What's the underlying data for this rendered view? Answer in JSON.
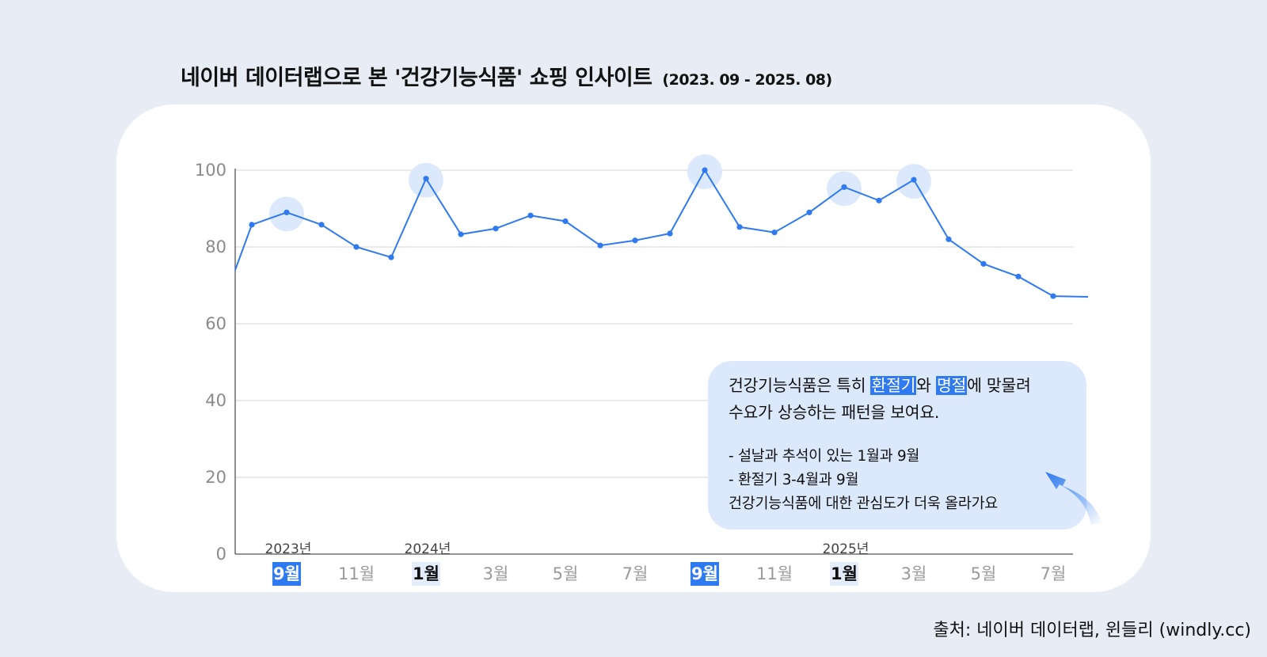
{
  "title": {
    "main": "네이버 데이터랩으로 본 '건강기능식품' 쇼핑 인사이트",
    "range": "(2023. 09 - 2025. 08)"
  },
  "chart_data": {
    "type": "line",
    "ylim": [
      0,
      100
    ],
    "yticks": [
      "0",
      "20",
      "40",
      "60",
      "80",
      "100"
    ],
    "grid": true,
    "x": [
      "2023-08",
      "2023-09",
      "2023-10",
      "2023-11",
      "2023-12",
      "2024-01",
      "2024-02",
      "2024-03",
      "2024-04",
      "2024-05",
      "2024-06",
      "2024-07",
      "2024-08",
      "2024-09",
      "2024-10",
      "2024-11",
      "2024-12",
      "2025-01",
      "2025-02",
      "2025-03",
      "2025-04",
      "2025-05",
      "2025-06",
      "2025-07",
      "2025-08"
    ],
    "values": [
      85.8,
      89.0,
      85.8,
      80.0,
      77.3,
      97.8,
      83.3,
      84.8,
      88.2,
      86.7,
      80.4,
      81.7,
      83.5,
      100,
      85.2,
      83.8,
      89.0,
      95.6,
      92.1,
      97.5,
      82.0,
      75.6,
      72.3,
      67.2,
      67.0
    ],
    "leading_value": 74.0,
    "highlighted_x": [
      "2023-09",
      "2024-01",
      "2024-09",
      "2025-01",
      "2025-03"
    ],
    "x_month_labels": [
      {
        "x": "2023-09",
        "label": "9월",
        "style": "blue"
      },
      {
        "x": "2023-11",
        "label": "11월",
        "style": "plain"
      },
      {
        "x": "2024-01",
        "label": "1월",
        "style": "light"
      },
      {
        "x": "2024-03",
        "label": "3월",
        "style": "plain"
      },
      {
        "x": "2024-05",
        "label": "5월",
        "style": "plain"
      },
      {
        "x": "2024-07",
        "label": "7월",
        "style": "plain"
      },
      {
        "x": "2024-09",
        "label": "9월",
        "style": "blue"
      },
      {
        "x": "2024-11",
        "label": "11월",
        "style": "plain"
      },
      {
        "x": "2025-01",
        "label": "1월",
        "style": "light"
      },
      {
        "x": "2025-03",
        "label": "3월",
        "style": "plain"
      },
      {
        "x": "2025-05",
        "label": "5월",
        "style": "plain"
      },
      {
        "x": "2025-07",
        "label": "7월",
        "style": "plain"
      }
    ],
    "x_year_labels": [
      {
        "x": "2023-09",
        "label": "2023년"
      },
      {
        "x": "2024-01",
        "label": "2024년"
      },
      {
        "x": "2025-01",
        "label": "2025년"
      }
    ],
    "line_color": "#2f7af0",
    "highlight_color": "#dce9fc"
  },
  "callout": {
    "p1_a": "건강기능식품은 특히 ",
    "p1_hl1": "환절기",
    "p1_b": "와 ",
    "p1_hl2": "명절",
    "p1_c": "에 맞물려",
    "p1_line2": "수요가 상승하는 패턴을 보여요.",
    "b1": "- 설날과 추석이 있는 1월과 9월",
    "b2": "- 환절기 3-4월과 9월",
    "b3": "건강기능식품에 대한 관심도가 더욱 올라가요"
  },
  "source": "출처: 네이버 데이터랩, 윈들리 (windly.cc)"
}
